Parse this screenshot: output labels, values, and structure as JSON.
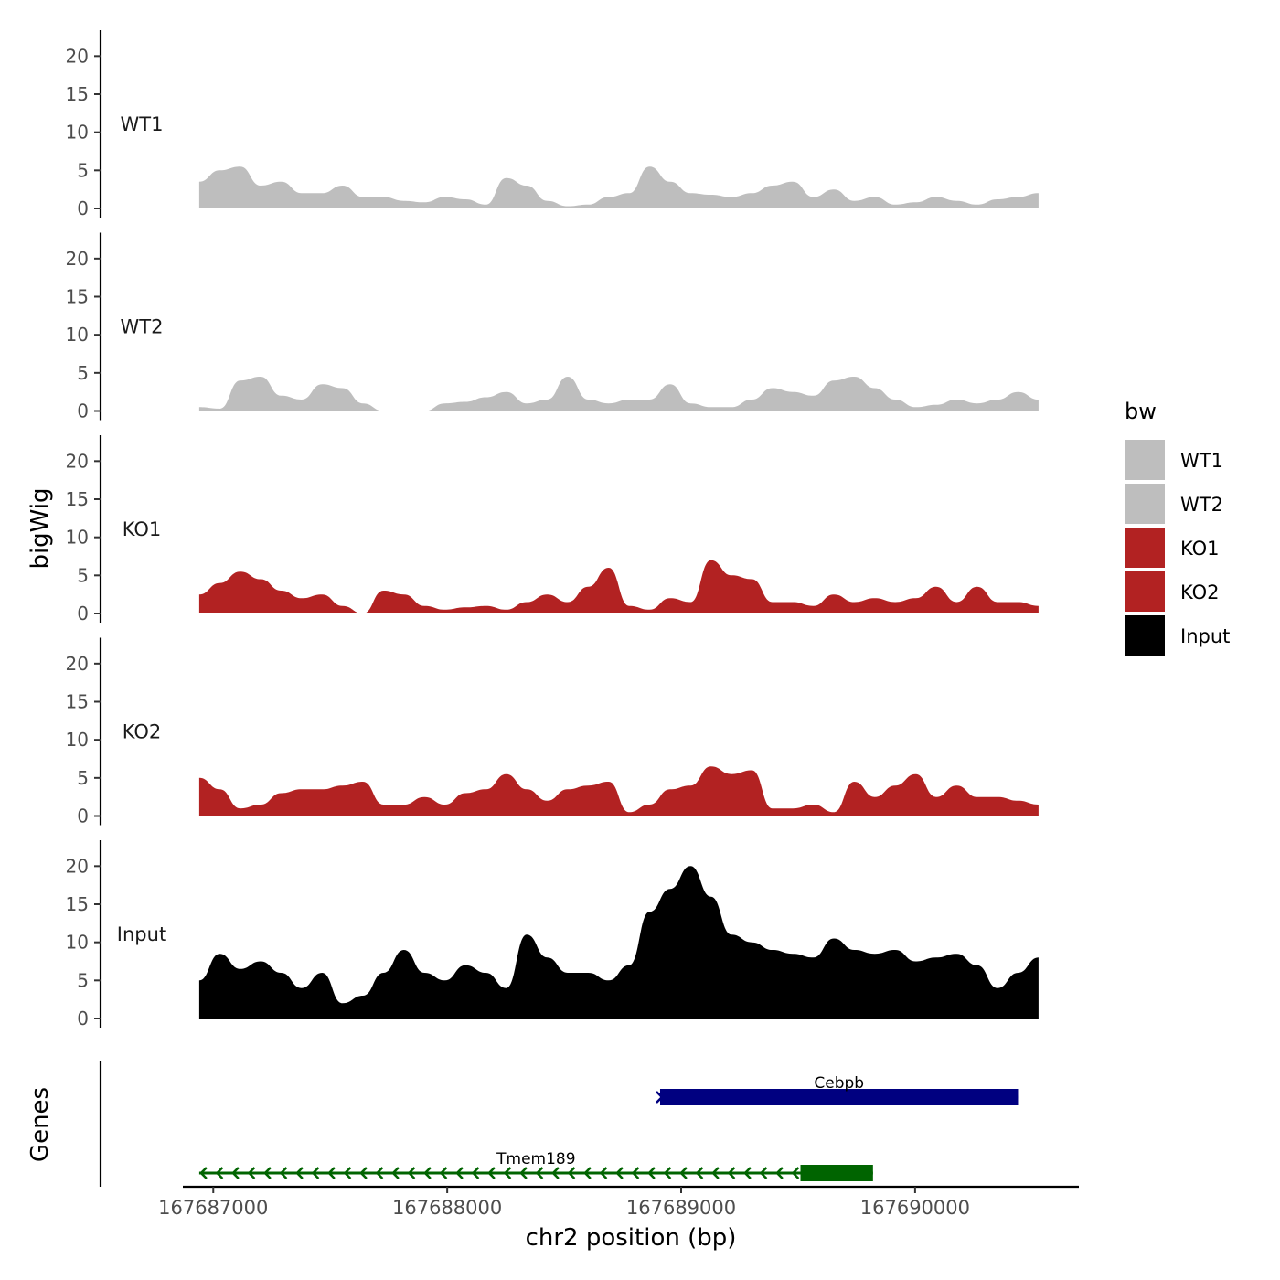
{
  "chart_data": {
    "type": "area",
    "title": "",
    "xlabel": "chr2 position (bp)",
    "ylabel": "bigWig",
    "genes_label": "Genes",
    "xlim": [
      167686870,
      167690700
    ],
    "ylim": [
      0,
      24
    ],
    "x_ticks": [
      167687000,
      167688000,
      167689000,
      167690000
    ],
    "x_tick_labels": [
      "167687000",
      "167688000",
      "167689000",
      "167690000"
    ],
    "y_ticks": [
      0,
      5,
      10,
      15,
      20
    ],
    "y_tick_labels": [
      "0",
      "5",
      "10",
      "15",
      "20"
    ],
    "x_start": 167686940,
    "x_step": 87.5,
    "legend": {
      "title": "bw",
      "position": "right",
      "entries": [
        {
          "label": "WT1",
          "color": "#bebebe"
        },
        {
          "label": "WT2",
          "color": "#bebebe"
        },
        {
          "label": "KO1",
          "color": "#b22222"
        },
        {
          "label": "KO2",
          "color": "#b22222"
        },
        {
          "label": "Input",
          "color": "#000000"
        }
      ]
    },
    "series": [
      {
        "name": "WT1",
        "color": "#bebebe",
        "values": [
          3.5,
          5.0,
          5.5,
          3.0,
          3.5,
          2.0,
          2.0,
          3.0,
          1.5,
          1.5,
          1.0,
          0.8,
          1.5,
          1.2,
          0.5,
          4.0,
          3.0,
          1.0,
          0.3,
          0.5,
          1.5,
          2.0,
          5.5,
          3.5,
          2.0,
          1.8,
          1.5,
          2.0,
          3.0,
          3.5,
          1.5,
          2.5,
          1.0,
          1.5,
          0.5,
          0.8,
          1.5,
          1.0,
          0.5,
          1.2,
          1.5,
          2.0
        ]
      },
      {
        "name": "WT2",
        "color": "#bebebe",
        "values": [
          0.5,
          0.3,
          4.0,
          4.5,
          2.0,
          1.5,
          3.5,
          3.0,
          1.0,
          0.0,
          0.0,
          0.0,
          1.0,
          1.2,
          1.8,
          2.5,
          1.0,
          1.5,
          4.5,
          1.5,
          1.0,
          1.5,
          1.5,
          3.5,
          1.0,
          0.5,
          0.5,
          1.5,
          3.0,
          2.5,
          2.0,
          4.0,
          4.5,
          3.0,
          1.5,
          0.5,
          0.8,
          1.5,
          1.0,
          1.5,
          2.5,
          1.5
        ]
      },
      {
        "name": "KO1",
        "color": "#b22222",
        "values": [
          2.5,
          4.0,
          5.5,
          4.5,
          3.0,
          2.0,
          2.5,
          1.0,
          0.0,
          3.0,
          2.5,
          1.0,
          0.5,
          0.8,
          1.0,
          0.5,
          1.5,
          2.5,
          1.5,
          3.5,
          6.0,
          1.0,
          0.5,
          2.0,
          1.5,
          7.0,
          5.0,
          4.5,
          1.5,
          1.5,
          1.0,
          2.5,
          1.5,
          2.0,
          1.5,
          2.0,
          3.5,
          1.5,
          3.5,
          1.5,
          1.5,
          1.0
        ]
      },
      {
        "name": "KO2",
        "color": "#b22222",
        "values": [
          5.0,
          3.5,
          1.0,
          1.5,
          3.0,
          3.5,
          3.5,
          4.0,
          4.5,
          1.5,
          1.5,
          2.5,
          1.5,
          3.0,
          3.5,
          5.5,
          3.5,
          2.0,
          3.5,
          4.0,
          4.5,
          0.5,
          1.5,
          3.5,
          4.0,
          6.5,
          5.5,
          6.0,
          1.0,
          1.0,
          1.5,
          0.5,
          4.5,
          2.5,
          4.0,
          5.5,
          2.5,
          4.0,
          2.5,
          2.5,
          2.0,
          1.5
        ]
      },
      {
        "name": "Input",
        "color": "#000000",
        "values": [
          5.0,
          8.5,
          6.5,
          7.5,
          6.0,
          4.0,
          6.0,
          2.0,
          3.0,
          6.0,
          9.0,
          6.0,
          5.0,
          7.0,
          6.0,
          4.0,
          11.0,
          8.0,
          6.0,
          6.0,
          5.0,
          7.0,
          14.0,
          17.0,
          20.0,
          16.0,
          11.0,
          10.0,
          9.0,
          8.5,
          8.0,
          10.5,
          9.0,
          8.5,
          9.0,
          7.5,
          8.0,
          8.5,
          7.0,
          4.0,
          6.0,
          8.0
        ]
      }
    ],
    "genes": [
      {
        "name": "Tmem189",
        "start": 167686940,
        "end": 167689820,
        "strand": "-",
        "cds_start": 167689510,
        "cds_end": 167689820,
        "color": "#006400",
        "row": 2
      },
      {
        "name": "Cebpb",
        "start": 167688910,
        "end": 167690440,
        "strand": "+",
        "cds_start": 167688910,
        "cds_end": 167690440,
        "color": "#000080",
        "row": 1
      }
    ]
  }
}
